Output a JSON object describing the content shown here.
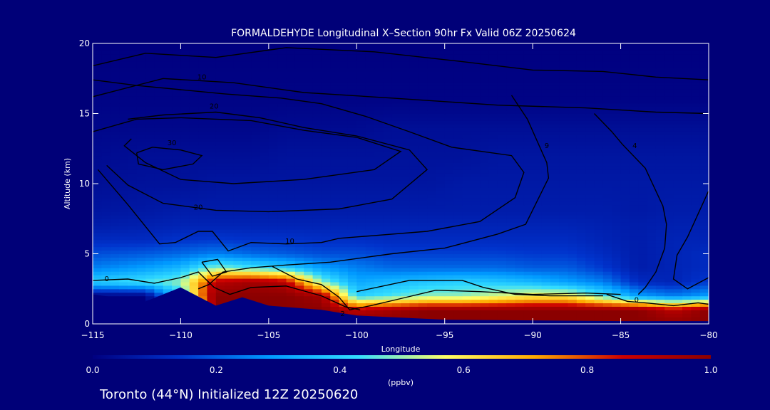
{
  "chart_data": {
    "type": "heatmap",
    "title": "FORMALDEHYDE Longitudinal X–Section 90hr  Fx Valid 06Z 20250624",
    "xlabel": "Longitude",
    "ylabel": "Altitude (km)",
    "xlim": [
      -115,
      -80
    ],
    "ylim": [
      0,
      20
    ],
    "x_ticks": [
      -115,
      -110,
      -105,
      -100,
      -95,
      -90,
      -85,
      -80
    ],
    "x_tick_labels": [
      "−115",
      "−110",
      "−105",
      "−100",
      "−95",
      "−90",
      "−85",
      "−80"
    ],
    "y_ticks": [
      0,
      5,
      10,
      15,
      20
    ],
    "y_tick_labels": [
      "0",
      "5",
      "10",
      "15",
      "20"
    ],
    "colorbar": {
      "min": 0.0,
      "max": 1.0,
      "ticks": [
        "0.0",
        "0.2",
        "0.4",
        "0.6",
        "0.8",
        "1.0"
      ],
      "unit": "(ppbv)",
      "colors": [
        "#000080",
        "#0033cc",
        "#0099ff",
        "#33ddff",
        "#ffff66",
        "#ffaa00",
        "#cc0000",
        "#8b0000"
      ]
    },
    "color_field_lon": [
      -115,
      -112,
      -110,
      -108,
      -106,
      -104,
      -102,
      -100,
      -98,
      -96,
      -94,
      -92,
      -90,
      -88,
      -86,
      -84,
      -82,
      -80
    ],
    "color_field_alt": [
      0,
      1,
      2,
      3,
      4,
      5,
      6,
      7,
      8,
      10,
      12,
      14,
      16,
      20
    ],
    "color_field_values": [
      [
        0.0,
        0.0,
        0.0,
        1.0,
        1.0,
        1.0,
        1.0,
        1.0,
        1.0,
        1.0,
        1.0,
        1.0,
        1.0,
        1.0,
        1.0,
        1.0,
        1.0,
        1.0
      ],
      [
        0.0,
        0.0,
        0.0,
        1.0,
        1.0,
        1.0,
        1.0,
        0.9,
        0.95,
        1.0,
        1.0,
        1.0,
        1.0,
        1.0,
        1.0,
        1.0,
        0.9,
        1.0
      ],
      [
        0.0,
        0.0,
        0.4,
        1.0,
        1.0,
        1.0,
        0.95,
        0.4,
        0.45,
        0.5,
        0.5,
        0.55,
        0.6,
        0.6,
        0.45,
        0.3,
        0.25,
        0.3
      ],
      [
        0.4,
        0.45,
        0.5,
        0.9,
        0.95,
        0.9,
        0.5,
        0.32,
        0.35,
        0.38,
        0.4,
        0.38,
        0.35,
        0.3,
        0.25,
        0.12,
        0.1,
        0.15
      ],
      [
        0.25,
        0.3,
        0.35,
        0.5,
        0.45,
        0.4,
        0.3,
        0.25,
        0.22,
        0.22,
        0.22,
        0.22,
        0.2,
        0.2,
        0.15,
        0.08,
        0.1,
        0.12
      ],
      [
        0.18,
        0.2,
        0.22,
        0.25,
        0.22,
        0.2,
        0.18,
        0.18,
        0.16,
        0.16,
        0.16,
        0.16,
        0.15,
        0.15,
        0.12,
        0.08,
        0.1,
        0.12
      ],
      [
        0.12,
        0.12,
        0.14,
        0.15,
        0.14,
        0.14,
        0.13,
        0.13,
        0.12,
        0.12,
        0.12,
        0.12,
        0.12,
        0.12,
        0.1,
        0.08,
        0.1,
        0.1
      ],
      [
        0.08,
        0.09,
        0.1,
        0.1,
        0.1,
        0.1,
        0.1,
        0.1,
        0.1,
        0.1,
        0.1,
        0.1,
        0.1,
        0.1,
        0.09,
        0.08,
        0.09,
        0.09
      ],
      [
        0.06,
        0.07,
        0.08,
        0.08,
        0.08,
        0.08,
        0.08,
        0.08,
        0.08,
        0.08,
        0.08,
        0.08,
        0.08,
        0.08,
        0.08,
        0.07,
        0.08,
        0.08
      ],
      [
        0.04,
        0.05,
        0.05,
        0.06,
        0.06,
        0.06,
        0.06,
        0.06,
        0.06,
        0.06,
        0.07,
        0.07,
        0.07,
        0.07,
        0.07,
        0.07,
        0.07,
        0.07
      ],
      [
        0.03,
        0.04,
        0.04,
        0.04,
        0.04,
        0.05,
        0.05,
        0.05,
        0.05,
        0.05,
        0.05,
        0.06,
        0.06,
        0.06,
        0.06,
        0.06,
        0.06,
        0.06
      ],
      [
        0.02,
        0.02,
        0.02,
        0.02,
        0.02,
        0.03,
        0.03,
        0.03,
        0.04,
        0.04,
        0.04,
        0.04,
        0.04,
        0.04,
        0.04,
        0.04,
        0.04,
        0.04
      ],
      [
        0.01,
        0.01,
        0.01,
        0.01,
        0.01,
        0.01,
        0.01,
        0.01,
        0.01,
        0.01,
        0.01,
        0.01,
        0.01,
        0.01,
        0.01,
        0.01,
        0.01,
        0.01
      ],
      [
        0.0,
        0.0,
        0.0,
        0.0,
        0.0,
        0.0,
        0.0,
        0.0,
        0.0,
        0.0,
        0.0,
        0.0,
        0.0,
        0.0,
        0.0,
        0.0,
        0.0,
        0.0
      ]
    ],
    "terrain": [
      {
        "lon": -115,
        "alt": 2.1
      },
      {
        "lon": -112,
        "alt": 1.6
      },
      {
        "lon": -110,
        "alt": 2.6
      },
      {
        "lon": -108,
        "alt": 1.3
      },
      {
        "lon": -106.5,
        "alt": 1.9
      },
      {
        "lon": -105,
        "alt": 1.3
      },
      {
        "lon": -102,
        "alt": 1.0
      },
      {
        "lon": -100,
        "alt": 0.6
      },
      {
        "lon": -95,
        "alt": 0.3
      },
      {
        "lon": -90,
        "alt": 0.25
      },
      {
        "lon": -85,
        "alt": 0.2
      },
      {
        "lon": -80,
        "alt": 0.2
      }
    ],
    "contours": [
      {
        "label": "10",
        "label_lon": -108.8,
        "label_alt": 17.6,
        "points": [
          [
            -115,
            18.4
          ],
          [
            -112,
            19.3
          ],
          [
            -108,
            19.0
          ],
          [
            -104,
            19.7
          ],
          [
            -99,
            19.4
          ],
          [
            -94,
            18.7
          ],
          [
            -90,
            18.1
          ],
          [
            -86,
            18.0
          ],
          [
            -83,
            17.6
          ],
          [
            -80,
            17.4
          ]
        ]
      },
      {
        "label": "20",
        "label_lon": -108.1,
        "label_alt": 15.5,
        "points": [
          [
            -115,
            16.2
          ],
          [
            -111,
            17.5
          ],
          [
            -107,
            17.2
          ],
          [
            -103,
            16.5
          ],
          [
            -98,
            16.1
          ],
          [
            -92,
            15.6
          ],
          [
            -87,
            15.4
          ],
          [
            -83,
            15.1
          ],
          [
            -80,
            15.0
          ]
        ]
      },
      {
        "label": "30",
        "label_lon": -110.5,
        "label_alt": 12.9,
        "points": [
          [
            -115,
            13.7
          ],
          [
            -112.5,
            14.6
          ],
          [
            -110,
            14.7
          ],
          [
            -106,
            14.5
          ],
          [
            -103,
            13.8
          ],
          [
            -100,
            13.3
          ],
          [
            -97.5,
            12.3
          ],
          [
            -99,
            11.0
          ],
          [
            -103,
            10.3
          ],
          [
            -107,
            10.0
          ],
          [
            -110,
            10.3
          ],
          [
            -112,
            11.5
          ],
          [
            -113.2,
            12.7
          ],
          [
            -112.8,
            13.2
          ]
        ]
      },
      {
        "label": "",
        "label_lon": -110.0,
        "label_alt": 12.0,
        "points": [
          [
            -112.5,
            12.2
          ],
          [
            -111.6,
            12.6
          ],
          [
            -110,
            12.4
          ],
          [
            -108.8,
            12.0
          ],
          [
            -109.3,
            11.4
          ],
          [
            -111,
            11.0
          ],
          [
            -112.4,
            11.4
          ],
          [
            -112.5,
            12.2
          ]
        ]
      },
      {
        "label": "20",
        "label_lon": -109.0,
        "label_alt": 8.3,
        "points": [
          [
            -114.2,
            11.3
          ],
          [
            -113,
            9.9
          ],
          [
            -111,
            8.6
          ],
          [
            -108,
            8.1
          ],
          [
            -105,
            8.0
          ],
          [
            -101,
            8.2
          ],
          [
            -98,
            8.9
          ],
          [
            -96,
            11.0
          ],
          [
            -97,
            12.4
          ],
          [
            -100,
            13.4
          ],
          [
            -103,
            14.0
          ],
          [
            -105.5,
            14.7
          ],
          [
            -108,
            15.1
          ],
          [
            -111,
            14.9
          ],
          [
            -113,
            14.6
          ]
        ]
      },
      {
        "label": "10",
        "label_lon": -103.8,
        "label_alt": 5.9,
        "points": [
          [
            -114.7,
            11.0
          ],
          [
            -113,
            8.5
          ],
          [
            -111.2,
            5.7
          ],
          [
            -110.3,
            5.8
          ],
          [
            -109,
            6.6
          ],
          [
            -108.2,
            6.6
          ],
          [
            -107.3,
            5.2
          ],
          [
            -106,
            5.8
          ],
          [
            -104,
            5.7
          ],
          [
            -102,
            5.8
          ],
          [
            -101,
            6.1
          ],
          [
            -99,
            6.3
          ],
          [
            -96,
            6.6
          ],
          [
            -93,
            7.3
          ],
          [
            -91,
            9.0
          ],
          [
            -90.5,
            10.8
          ],
          [
            -91.2,
            12.0
          ],
          [
            -94.6,
            12.6
          ],
          [
            -97,
            13.7
          ],
          [
            -99.5,
            14.8
          ],
          [
            -102,
            15.7
          ],
          [
            -104.3,
            16.1
          ],
          [
            -107.5,
            16.4
          ],
          [
            -110,
            16.7
          ],
          [
            -112.5,
            17.0
          ],
          [
            -115,
            17.4
          ]
        ]
      },
      {
        "label": "9",
        "label_lon": -89.2,
        "label_alt": 12.7,
        "points": [
          [
            -91.2,
            16.3
          ],
          [
            -90.3,
            14.6
          ],
          [
            -89.2,
            11.5
          ],
          [
            -89.1,
            10.4
          ],
          [
            -90.4,
            7.1
          ],
          [
            -92,
            6.4
          ],
          [
            -95,
            5.4
          ],
          [
            -98,
            5.0
          ],
          [
            -101.5,
            4.4
          ],
          [
            -104,
            4.2
          ],
          [
            -106,
            4.0
          ],
          [
            -107.6,
            3.7
          ],
          [
            -108.4,
            2.8
          ],
          [
            -109,
            2.5
          ]
        ]
      },
      {
        "label": "0",
        "label_lon": -114.2,
        "label_alt": 3.2,
        "points": [
          [
            -115,
            3.1
          ],
          [
            -113,
            3.2
          ],
          [
            -111.5,
            2.9
          ],
          [
            -110,
            3.3
          ],
          [
            -109,
            3.7
          ],
          [
            -108.1,
            2.6
          ],
          [
            -107.2,
            2.1
          ],
          [
            -106,
            2.6
          ],
          [
            -104,
            2.7
          ],
          [
            -102,
            2.0
          ],
          [
            -100.6,
            1.2
          ],
          [
            -99.8,
            1.0
          ]
        ]
      },
      {
        "label": "",
        "label_lon": -108.0,
        "label_alt": 4.0,
        "points": [
          [
            -108.8,
            4.4
          ],
          [
            -108.2,
            3.4
          ],
          [
            -107.4,
            3.7
          ],
          [
            -107.9,
            4.6
          ],
          [
            -108.8,
            4.4
          ]
        ]
      },
      {
        "label": "2",
        "label_lon": -100.8,
        "label_alt": 0.7,
        "points": [
          [
            -104.8,
            4.1
          ],
          [
            -103.4,
            3.2
          ],
          [
            -102,
            2.8
          ],
          [
            -101,
            1.9
          ],
          [
            -100.4,
            1.0
          ],
          [
            -99.2,
            1.3
          ],
          [
            -97.5,
            1.8
          ],
          [
            -95.5,
            2.4
          ],
          [
            -93,
            2.3
          ],
          [
            -90,
            2.1
          ],
          [
            -87,
            2.2
          ],
          [
            -85,
            2.1
          ]
        ]
      },
      {
        "label": "",
        "label_lon": -97.0,
        "label_alt": 4.0,
        "points": [
          [
            -100,
            2.3
          ],
          [
            -97,
            3.1
          ],
          [
            -94,
            3.1
          ],
          [
            -92.8,
            2.6
          ],
          [
            -91,
            2.1
          ],
          [
            -89,
            2.0
          ],
          [
            -86,
            2.0
          ]
        ]
      },
      {
        "label": "4",
        "label_lon": -84.2,
        "label_alt": 12.7,
        "points": [
          [
            -86.5,
            15.0
          ],
          [
            -85.5,
            13.7
          ],
          [
            -84.9,
            12.8
          ],
          [
            -83.6,
            11.1
          ],
          [
            -82.6,
            8.4
          ],
          [
            -82.4,
            7.1
          ],
          [
            -82.5,
            5.4
          ],
          [
            -83,
            3.7
          ],
          [
            -83.6,
            2.6
          ],
          [
            -84,
            2.1
          ]
        ]
      },
      {
        "label": "0",
        "label_lon": -84.1,
        "label_alt": 1.7,
        "points": [
          [
            -85.8,
            2.1
          ],
          [
            -84.6,
            1.6
          ],
          [
            -83.6,
            1.5
          ],
          [
            -82,
            1.3
          ],
          [
            -80.6,
            1.5
          ],
          [
            -80,
            1.4
          ]
        ]
      },
      {
        "label": "",
        "label_lon": -80.0,
        "label_alt": 8.0,
        "points": [
          [
            -80,
            9.5
          ],
          [
            -81.2,
            6.2
          ],
          [
            -81.8,
            4.9
          ],
          [
            -82,
            3.2
          ],
          [
            -81.2,
            2.5
          ],
          [
            -80,
            3.3
          ]
        ]
      }
    ]
  },
  "footer": {
    "text": "Toronto (44°N) Initialized 12Z 20250620"
  }
}
